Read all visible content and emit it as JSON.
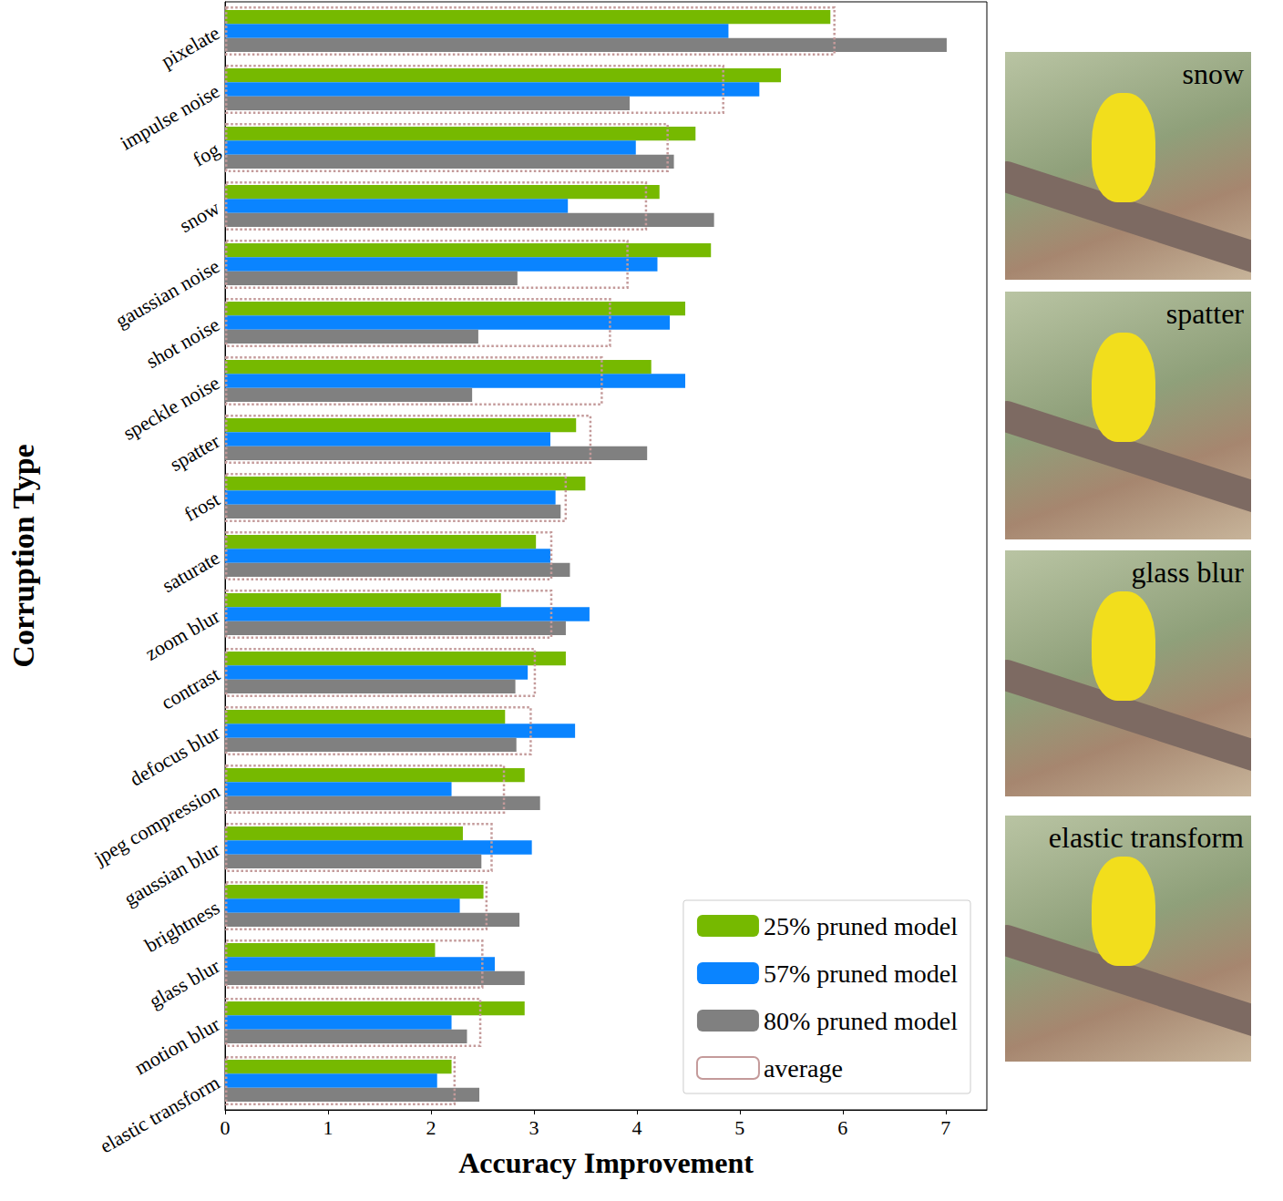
{
  "chart_data": {
    "type": "bar",
    "orientation": "horizontal",
    "xlabel": "Accuracy Improvement",
    "ylabel": "Corruption Type",
    "categories": [
      "pixelate",
      "impulse noise",
      "fog",
      "snow",
      "gaussian noise",
      "shot noise",
      "speckle noise",
      "spatter",
      "frost",
      "saturate",
      "zoom blur",
      "contrast",
      "defocus blur",
      "jpeg compression",
      "gaussian blur",
      "brightness",
      "glass blur",
      "motion blur",
      "elastic transform"
    ],
    "series": [
      {
        "name": "25% pruned model",
        "color": "#76b900",
        "values": [
          5.88,
          5.4,
          4.57,
          4.22,
          4.72,
          4.47,
          4.14,
          3.41,
          3.5,
          3.02,
          2.68,
          3.31,
          2.72,
          2.91,
          2.31,
          2.51,
          2.04,
          2.91,
          2.2
        ]
      },
      {
        "name": "57% pruned model",
        "color": "#0a84ff",
        "values": [
          4.89,
          5.19,
          3.99,
          3.33,
          4.2,
          4.32,
          4.47,
          3.16,
          3.21,
          3.16,
          3.54,
          2.94,
          3.4,
          2.2,
          2.98,
          2.28,
          2.62,
          2.2,
          2.06
        ]
      },
      {
        "name": "80% pruned model",
        "color": "#808080",
        "values": [
          7.01,
          3.93,
          4.36,
          4.75,
          2.84,
          2.46,
          2.4,
          4.1,
          3.26,
          3.35,
          3.31,
          2.82,
          2.83,
          3.06,
          2.49,
          2.86,
          2.91,
          2.35,
          2.47
        ]
      },
      {
        "name": "average",
        "color": "#c49a9a",
        "line_style": "dotted",
        "values": [
          5.93,
          4.85,
          4.31,
          4.1,
          3.92,
          3.75,
          3.67,
          3.56,
          3.32,
          3.18,
          3.18,
          3.02,
          2.98,
          2.72,
          2.6,
          2.55,
          2.51,
          2.49,
          2.24
        ]
      }
    ],
    "xlim": [
      0,
      7.4
    ],
    "xticks": [
      0,
      1,
      2,
      3,
      4,
      5,
      6,
      7
    ],
    "grid": false,
    "legend": "lower right"
  },
  "image_labels": [
    "snow",
    "spatter",
    "glass blur",
    "elastic transform"
  ]
}
